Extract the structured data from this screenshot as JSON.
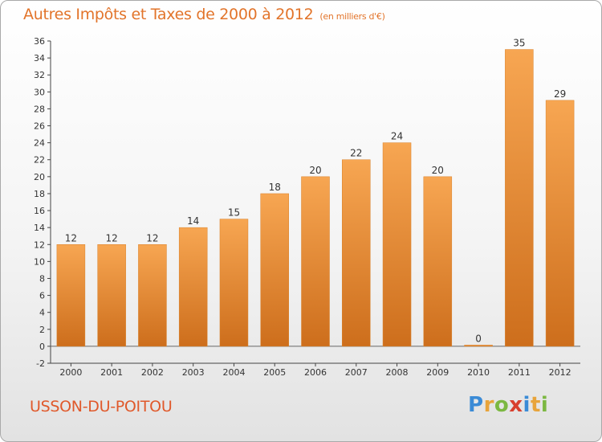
{
  "title": "Autres Impôts et Taxes de 2000 à 2012",
  "unit": "(en milliers d'€)",
  "commune": "USSON-DU-POITOU",
  "logo": "Proxiti",
  "colors": {
    "bar_light": "#f7a652",
    "bar_dark": "#cd6e1c",
    "title": "#e2742a"
  },
  "chart_data": {
    "type": "bar",
    "categories": [
      "2000",
      "2001",
      "2002",
      "2003",
      "2004",
      "2005",
      "2006",
      "2007",
      "2008",
      "2009",
      "2010",
      "2011",
      "2012"
    ],
    "values": [
      12,
      12,
      12,
      14,
      15,
      18,
      20,
      22,
      24,
      20,
      0,
      35,
      29
    ],
    "ylim": [
      -2,
      36
    ],
    "yticks": [
      -2,
      0,
      2,
      4,
      6,
      8,
      10,
      12,
      14,
      16,
      18,
      20,
      22,
      24,
      26,
      28,
      30,
      32,
      34,
      36
    ],
    "grid": false
  }
}
